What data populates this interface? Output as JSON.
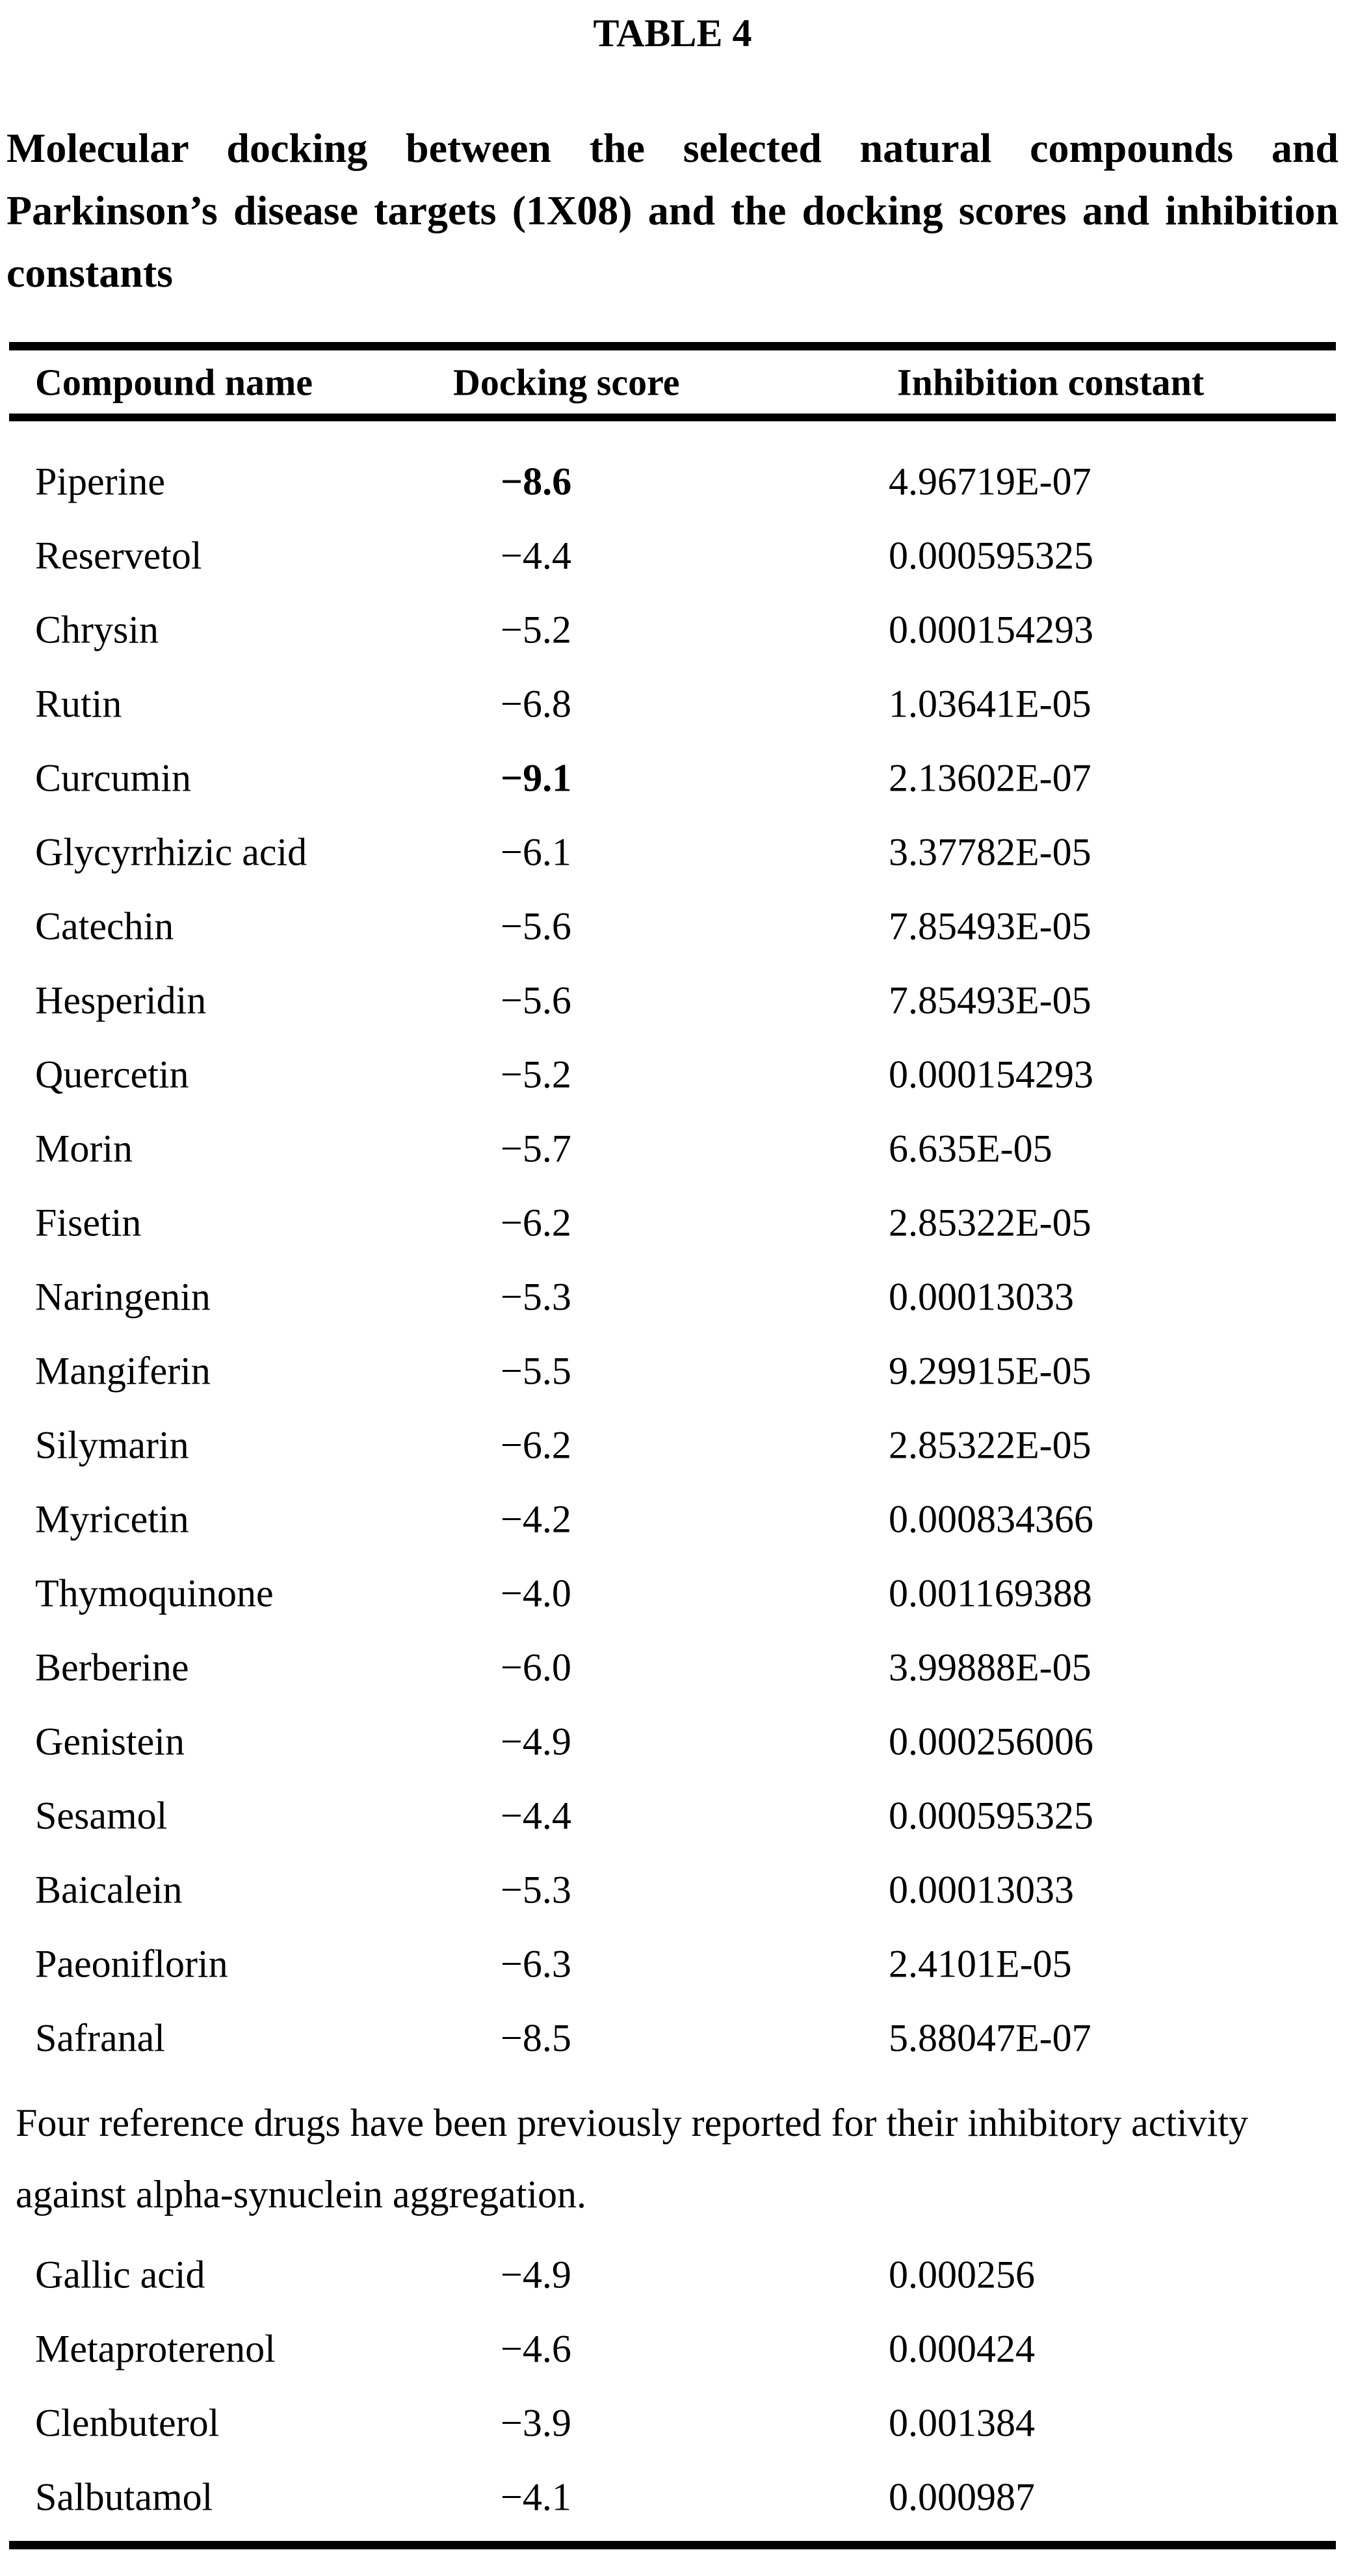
{
  "title": "TABLE 4",
  "caption": "Molecular docking between the selected natural compounds and Parkinson’s disease targets (1X08) and the docking scores and inhibition constants",
  "table": {
    "columns": [
      "Compound name",
      "Docking score",
      "Inhibition constant"
    ],
    "rows": [
      {
        "name": "Piperine",
        "score": "−8.6",
        "score_bold": true,
        "constant": "4.96719E-07"
      },
      {
        "name": "Reservetol",
        "score": "−4.4",
        "score_bold": false,
        "constant": "0.000595325"
      },
      {
        "name": "Chrysin",
        "score": "−5.2",
        "score_bold": false,
        "constant": "0.000154293"
      },
      {
        "name": "Rutin",
        "score": "−6.8",
        "score_bold": false,
        "constant": "1.03641E-05"
      },
      {
        "name": "Curcumin",
        "score": "−9.1",
        "score_bold": true,
        "constant": "2.13602E-07"
      },
      {
        "name": "Glycyrrhizic acid",
        "score": "−6.1",
        "score_bold": false,
        "constant": "3.37782E-05"
      },
      {
        "name": "Catechin",
        "score": "−5.6",
        "score_bold": false,
        "constant": "7.85493E-05"
      },
      {
        "name": "Hesperidin",
        "score": "−5.6",
        "score_bold": false,
        "constant": "7.85493E-05"
      },
      {
        "name": "Quercetin",
        "score": "−5.2",
        "score_bold": false,
        "constant": "0.000154293"
      },
      {
        "name": "Morin",
        "score": "−5.7",
        "score_bold": false,
        "constant": "6.635E-05"
      },
      {
        "name": "Fisetin",
        "score": "−6.2",
        "score_bold": false,
        "constant": "2.85322E-05"
      },
      {
        "name": "Naringenin",
        "score": "−5.3",
        "score_bold": false,
        "constant": "0.00013033"
      },
      {
        "name": "Mangiferin",
        "score": "−5.5",
        "score_bold": false,
        "constant": "9.29915E-05"
      },
      {
        "name": "Silymarin",
        "score": "−6.2",
        "score_bold": false,
        "constant": "2.85322E-05"
      },
      {
        "name": "Myricetin",
        "score": "−4.2",
        "score_bold": false,
        "constant": "0.000834366"
      },
      {
        "name": "Thymoquinone",
        "score": "−4.0",
        "score_bold": false,
        "constant": "0.001169388"
      },
      {
        "name": "Berberine",
        "score": "−6.0",
        "score_bold": false,
        "constant": "3.99888E-05"
      },
      {
        "name": "Genistein",
        "score": "−4.9",
        "score_bold": false,
        "constant": "0.000256006"
      },
      {
        "name": "Sesamol",
        "score": "−4.4",
        "score_bold": false,
        "constant": "0.000595325"
      },
      {
        "name": "Baicalein",
        "score": "−5.3",
        "score_bold": false,
        "constant": "0.00013033"
      },
      {
        "name": "Paeoniflorin",
        "score": "−6.3",
        "score_bold": false,
        "constant": "2.4101E-05"
      },
      {
        "name": "Safranal",
        "score": "−8.5",
        "score_bold": false,
        "constant": "5.88047E-07"
      }
    ],
    "note": "Four reference drugs have been previously reported for their inhibitory activity against alpha-synuclein aggregation.",
    "reference_rows": [
      {
        "name": "Gallic acid",
        "score": "−4.9",
        "score_bold": false,
        "constant": "0.000256"
      },
      {
        "name": "Metaproterenol",
        "score": "−4.6",
        "score_bold": false,
        "constant": "0.000424"
      },
      {
        "name": "Clenbuterol",
        "score": "−3.9",
        "score_bold": false,
        "constant": "0.001384"
      },
      {
        "name": "Salbutamol",
        "score": "−4.1",
        "score_bold": false,
        "constant": "0.000987"
      }
    ]
  }
}
